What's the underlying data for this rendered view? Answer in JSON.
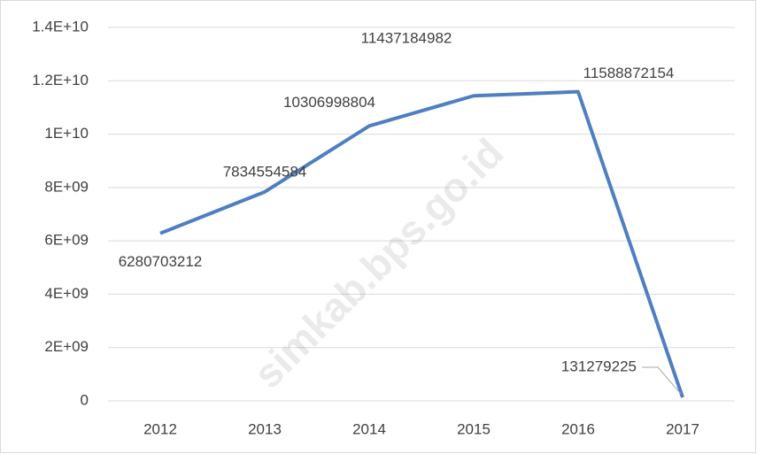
{
  "chart_data": {
    "type": "line",
    "categories": [
      "2012",
      "2013",
      "2014",
      "2015",
      "2016",
      "2017"
    ],
    "series": [
      {
        "color": "#4e7fc0",
        "values": [
          6280703212,
          7834554584,
          10306998804,
          11437184982,
          11588872154,
          131279225
        ]
      }
    ],
    "ylim": [
      0,
      14000000000
    ],
    "yticks": [
      0,
      {
        "value": 2000000000,
        "label": "2E+09"
      },
      {
        "value": 4000000000,
        "label": "4E+09"
      },
      {
        "value": 6000000000,
        "label": "6E+09"
      },
      {
        "value": 8000000000,
        "label": "8E+09"
      },
      {
        "value": 10000000000,
        "label": "1E+10"
      },
      {
        "value": 12000000000,
        "label": "1.2E+10"
      },
      {
        "value": 14000000000,
        "label": "1.4E+10"
      }
    ],
    "grid": true,
    "watermark": "simkab.bps.go.id"
  }
}
